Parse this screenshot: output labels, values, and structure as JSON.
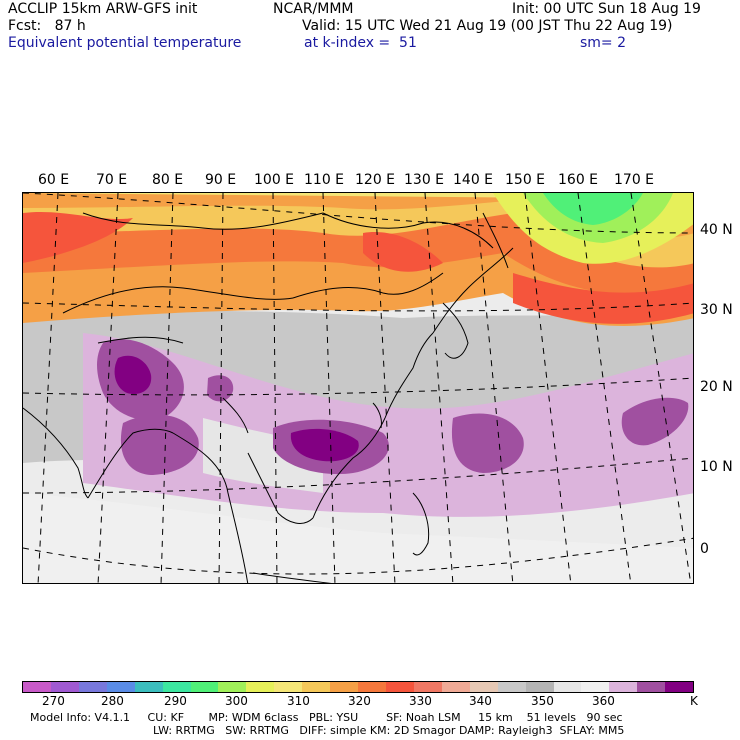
{
  "header": {
    "model": "ACCLIP 15km ARW-GFS init",
    "org": "NCAR/MMM",
    "init": "Init: 00 UTC Sun 18 Aug 19",
    "fcst": "Fcst:   87 h",
    "valid": "Valid: 15 UTC Wed 21 Aug 19 (00 JST Thu 22 Aug 19)",
    "field": "Equivalent potential temperature",
    "level": "at k-index =  51",
    "smooth": "sm= 2"
  },
  "map": {
    "lon_labels": [
      "60 E",
      "70 E",
      "80 E",
      "90 E",
      "100 E",
      "110 E",
      "120 E",
      "130 E",
      "140 E",
      "150 E",
      "160 E",
      "170 E"
    ],
    "lat_labels": [
      "40 N",
      "30 N",
      "20 N",
      "10 N",
      "0"
    ]
  },
  "colorbar": {
    "colors": [
      "#c85ac8",
      "#a05ad2",
      "#7878dc",
      "#5a8ce6",
      "#3cbebe",
      "#3ce6a0",
      "#50f078",
      "#a0f05a",
      "#e6f05a",
      "#f5e678",
      "#f5c85a",
      "#f5a046",
      "#f5783c",
      "#f5553c",
      "#f07864",
      "#f0aa96",
      "#e6c8b4",
      "#c8c8c8",
      "#b4b4b4",
      "#e6e6e6",
      "#f0f0f0",
      "#dcb4dc",
      "#a050a0",
      "#820082"
    ],
    "labels": [
      "270",
      "280",
      "290",
      "300",
      "310",
      "320",
      "330",
      "340",
      "350",
      "360",
      "K"
    ]
  },
  "model_info": {
    "line1": "Model Info: V4.1.1     CU: KF       MP: WDM 6class   PBL: YSU        SF: Noah LSM     15 km    51 levels   90 sec",
    "line2": "LW: RRTMG   SW: RRTMG   DIFF: simple KM: 2D Smagor DAMP: Rayleigh3  SFLAY: MM5"
  }
}
